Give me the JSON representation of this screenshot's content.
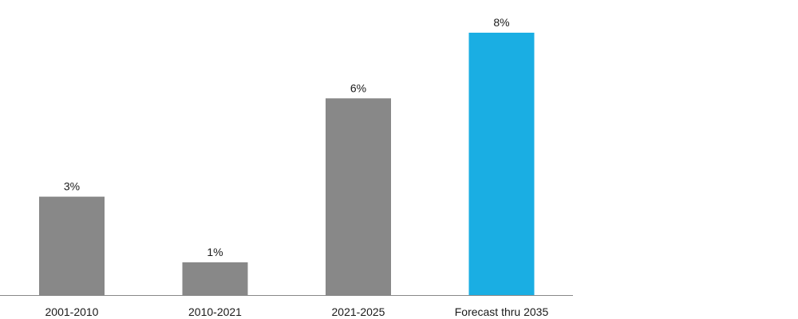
{
  "chart_data": {
    "type": "bar",
    "title": "",
    "xlabel": "",
    "ylabel": "",
    "categories": [
      "2001-2010",
      "2010-2021",
      "2021-2025",
      "Forecast thru 2035"
    ],
    "values": [
      3,
      1,
      6,
      8
    ],
    "value_labels": [
      "3%",
      "1%",
      "6%",
      "8%"
    ],
    "unit": "%",
    "ylim": [
      0,
      8
    ],
    "grid": false,
    "legend": "none",
    "colors": {
      "default": "#888888",
      "highlight": "#1aaee3",
      "axis": "#888888",
      "text": "#1a1a1a"
    },
    "highlight_index": 3
  }
}
